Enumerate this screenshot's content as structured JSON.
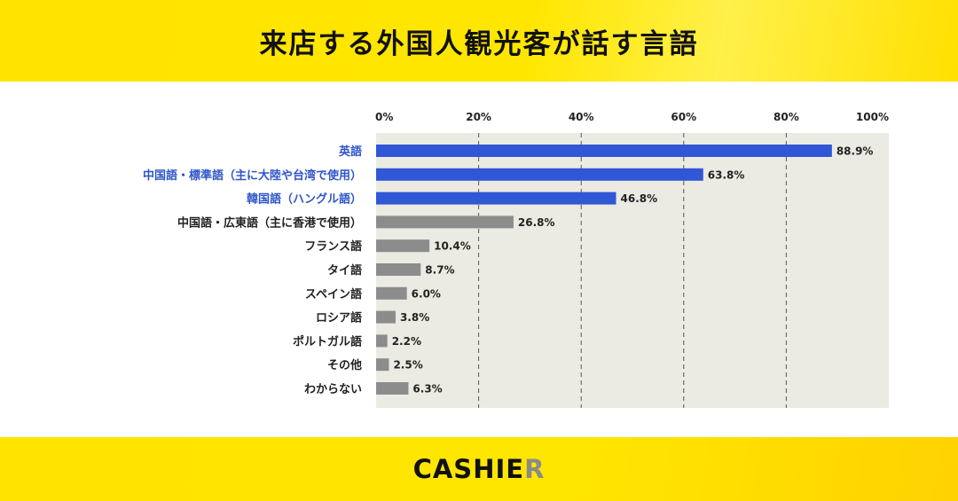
{
  "title": "来店する外国人観光客が話す言語",
  "logo": {
    "main": "CASHIE",
    "last": "R"
  },
  "colors": {
    "highlight_bar": "#3057d5",
    "highlight_label": "#2e55c9",
    "other_bar": "#8c8c8c",
    "other_label": "#222222",
    "plot_bg": "#ebeae3"
  },
  "chart_data": {
    "type": "bar",
    "orientation": "horizontal",
    "xlim": [
      0,
      100
    ],
    "ticks": [
      "0%",
      "20%",
      "40%",
      "60%",
      "80%",
      "100%"
    ],
    "tick_values": [
      0,
      20,
      40,
      60,
      80,
      100
    ],
    "grid": "dashed vertical",
    "categories": [
      "英語",
      "中国語・標準語（主に大陸や台湾で使用）",
      "韓国語（ハングル語）",
      "中国語・広東語（主に香港で使用）",
      "フランス語",
      "タイ語",
      "スペイン語",
      "ロシア語",
      "ポルトガル語",
      "その他",
      "わからない"
    ],
    "values": [
      88.9,
      63.8,
      46.8,
      26.8,
      10.4,
      8.7,
      6.0,
      3.8,
      2.2,
      2.5,
      6.3
    ],
    "value_labels": [
      "88.9%",
      "63.8%",
      "46.8%",
      "26.8%",
      "10.4%",
      "8.7%",
      "6.0%",
      "3.8%",
      "2.2%",
      "2.5%",
      "6.3%"
    ],
    "highlighted": [
      true,
      true,
      true,
      false,
      false,
      false,
      false,
      false,
      false,
      false,
      false
    ]
  }
}
